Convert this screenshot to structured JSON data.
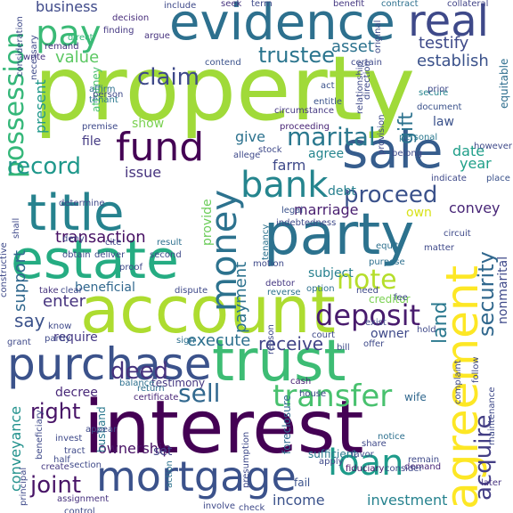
{
  "words": [
    {
      "text": "property",
      "color": "#a0da39"
    },
    {
      "text": "interest",
      "color": "#440154"
    },
    {
      "text": "account",
      "color": "#addc30"
    },
    {
      "text": "evidence",
      "color": "#2d708e"
    },
    {
      "text": "party",
      "color": "#2c728e"
    },
    {
      "text": "estate",
      "color": "#25ac82"
    },
    {
      "text": "purchase",
      "color": "#3b528b"
    },
    {
      "text": "trust",
      "color": "#3dbc74"
    },
    {
      "text": "title",
      "color": "#26828e"
    },
    {
      "text": "sale",
      "color": "#365d8d"
    },
    {
      "text": "mortgage",
      "color": "#3b528b"
    },
    {
      "text": "agreement",
      "color": "#fde725"
    },
    {
      "text": "fund",
      "color": "#440154"
    },
    {
      "text": "money",
      "color": "#2c728e"
    },
    {
      "text": "real",
      "color": "#3e4989"
    },
    {
      "text": "pay",
      "color": "#3aba76"
    },
    {
      "text": "bank",
      "color": "#25858e"
    },
    {
      "text": "loan",
      "color": "#1e9b8a"
    },
    {
      "text": "transfer",
      "color": "#48c16e"
    },
    {
      "text": "deposit",
      "color": "#481b6d"
    },
    {
      "text": "possession",
      "color": "#35b779"
    },
    {
      "text": "claim",
      "color": "#3e4989"
    },
    {
      "text": "trustee",
      "color": "#2b758e"
    },
    {
      "text": "marital",
      "color": "#2a788e"
    },
    {
      "text": "proceed",
      "color": "#3b528b"
    },
    {
      "text": "record",
      "color": "#1f988b"
    },
    {
      "text": "security",
      "color": "#31688e"
    },
    {
      "text": "acquire",
      "color": "#433e85"
    },
    {
      "text": "note",
      "color": "#b5de2b"
    },
    {
      "text": "sell",
      "color": "#31688e"
    },
    {
      "text": "joint",
      "color": "#481467"
    },
    {
      "text": "deed",
      "color": "#46327e"
    },
    {
      "text": "right",
      "color": "#481467"
    },
    {
      "text": "land",
      "color": "#2a788e"
    },
    {
      "text": "receive",
      "color": "#414487"
    },
    {
      "text": "establish",
      "color": "#3b528b"
    },
    {
      "text": "testify",
      "color": "#3e4989"
    },
    {
      "text": "asset",
      "color": "#2c728e"
    },
    {
      "text": "gift",
      "color": "#2c728e"
    },
    {
      "text": "value",
      "color": "#5cc863"
    },
    {
      "text": "business",
      "color": "#3e4989"
    },
    {
      "text": "transaction",
      "color": "#471164"
    },
    {
      "text": "payment",
      "color": "#2c728e"
    },
    {
      "text": "marriage",
      "color": "#481d6f"
    },
    {
      "text": "support",
      "color": "#31688e"
    },
    {
      "text": "enter",
      "color": "#46337e"
    },
    {
      "text": "execute",
      "color": "#2d708e"
    },
    {
      "text": "ownership",
      "color": "#471164"
    },
    {
      "text": "investment",
      "color": "#26828e"
    },
    {
      "text": "conveyance",
      "color": "#21918c"
    },
    {
      "text": "income",
      "color": "#3b528b"
    },
    {
      "text": "say",
      "color": "#3b528b"
    },
    {
      "text": "present",
      "color": "#1f988b"
    },
    {
      "text": "convey",
      "color": "#482677"
    },
    {
      "text": "year",
      "color": "#1fa088"
    },
    {
      "text": "date",
      "color": "#1f9e89"
    },
    {
      "text": "own",
      "color": "#d8e219"
    },
    {
      "text": "give",
      "color": "#2c728e"
    },
    {
      "text": "farm",
      "color": "#3e4989"
    },
    {
      "text": "provide",
      "color": "#6ccd5a"
    },
    {
      "text": "issue",
      "color": "#46337e"
    },
    {
      "text": "file",
      "color": "#443a83"
    },
    {
      "text": "show",
      "color": "#7ad151"
    },
    {
      "text": "agree",
      "color": "#25858e"
    },
    {
      "text": "debt",
      "color": "#27808e"
    },
    {
      "text": "require",
      "color": "#443983"
    },
    {
      "text": "beneficial",
      "color": "#31688e"
    },
    {
      "text": "subject",
      "color": "#27808e"
    },
    {
      "text": "testimony",
      "color": "#453781"
    },
    {
      "text": "nonmarital",
      "color": "#3e4989"
    },
    {
      "text": "decree",
      "color": "#482878"
    },
    {
      "text": "set",
      "color": "#414487"
    },
    {
      "text": "law",
      "color": "#3b528b"
    },
    {
      "text": "owner",
      "color": "#3e4989"
    },
    {
      "text": "attorney",
      "color": "#4ac16d"
    },
    {
      "text": "husband",
      "color": "#2a788e"
    },
    {
      "text": "foreclosure",
      "color": "#2f6c8e"
    },
    {
      "text": "creditor",
      "color": "#7ad151"
    },
    {
      "text": "wife",
      "color": "#31688e"
    },
    {
      "text": "cash",
      "color": "#482173"
    },
    {
      "text": "equitable",
      "color": "#2e6e8e"
    },
    {
      "text": "direct",
      "color": "#35b779"
    },
    {
      "text": "section",
      "color": "#3e4989"
    },
    {
      "text": "fiduciary",
      "color": "#471063"
    },
    {
      "text": "sufficient",
      "color": "#2a788e"
    },
    {
      "text": "demand",
      "color": "#482677"
    },
    {
      "text": "fail",
      "color": "#3b528b"
    },
    {
      "text": "certificate",
      "color": "#482677"
    },
    {
      "text": "entitle",
      "color": "#3b528b"
    },
    {
      "text": "collateral",
      "color": "#414487"
    },
    {
      "text": "benefit",
      "color": "#453882"
    },
    {
      "text": "contract",
      "color": "#2d708e"
    },
    {
      "text": "circumstance",
      "color": "#453882"
    },
    {
      "text": "personal",
      "color": "#2a788e"
    },
    {
      "text": "secure",
      "color": "#25858e"
    },
    {
      "text": "document",
      "color": "#3b528b"
    },
    {
      "text": "proceeding",
      "color": "#482576"
    },
    {
      "text": "place",
      "color": "#3b528b"
    },
    {
      "text": "legal",
      "color": "#3b528b"
    },
    {
      "text": "tenancy",
      "color": "#2c728e"
    },
    {
      "text": "include",
      "color": "#3e4989"
    },
    {
      "text": "seek",
      "color": "#46337e"
    },
    {
      "text": "term",
      "color": "#3e4989"
    },
    {
      "text": "decision",
      "color": "#472c7a"
    },
    {
      "text": "argue",
      "color": "#46327e"
    },
    {
      "text": "contend",
      "color": "#3b528b"
    },
    {
      "text": "certain",
      "color": "#3e4989"
    },
    {
      "text": "finding",
      "color": "#453882"
    },
    {
      "text": "remand",
      "color": "#46327e"
    },
    {
      "text": "write",
      "color": "#46327e"
    },
    {
      "text": "necessary",
      "color": "#3e4989"
    },
    {
      "text": "affirm",
      "color": "#2d708e"
    },
    {
      "text": "tenant",
      "color": "#2a788e"
    },
    {
      "text": "person",
      "color": "#3e4989"
    },
    {
      "text": "act",
      "color": "#3b528b"
    },
    {
      "text": "prior",
      "color": "#3e4989"
    },
    {
      "text": "later",
      "color": "#46337e"
    },
    {
      "text": "determine",
      "color": "#3e4989"
    },
    {
      "text": "deny",
      "color": "#3e4989"
    },
    {
      "text": "obtain",
      "color": "#3e4989"
    },
    {
      "text": "deliver",
      "color": "#3e4989"
    },
    {
      "text": "result",
      "color": "#2d708e"
    },
    {
      "text": "purpose",
      "color": "#2d708e"
    },
    {
      "text": "option",
      "color": "#2d708e"
    },
    {
      "text": "reverse",
      "color": "#2c728e"
    },
    {
      "text": "debtor",
      "color": "#453882"
    },
    {
      "text": "motion",
      "color": "#3e4989"
    },
    {
      "text": "take",
      "color": "#46337e"
    },
    {
      "text": "clear",
      "color": "#3e4989"
    },
    {
      "text": "dispute",
      "color": "#3e4989"
    },
    {
      "text": "sign",
      "color": "#2d708e"
    },
    {
      "text": "grant",
      "color": "#3e4989"
    },
    {
      "text": "return",
      "color": "#2d708e"
    },
    {
      "text": "balance",
      "color": "#2d708e"
    },
    {
      "text": "invest",
      "color": "#3e4989"
    },
    {
      "text": "half",
      "color": "#3e4989"
    },
    {
      "text": "tract",
      "color": "#3e4989"
    },
    {
      "text": "create",
      "color": "#453882"
    },
    {
      "text": "assignment",
      "color": "#46327e"
    },
    {
      "text": "involve",
      "color": "#3e4989"
    },
    {
      "text": "check",
      "color": "#3e4989"
    },
    {
      "text": "consider",
      "color": "#3e4989"
    },
    {
      "text": "share",
      "color": "#3e4989"
    },
    {
      "text": "notice",
      "color": "#2d708e"
    },
    {
      "text": "favor",
      "color": "#3e4989"
    },
    {
      "text": "apply",
      "color": "#3e4989"
    },
    {
      "text": "remain",
      "color": "#3e4989"
    },
    {
      "text": "complaint",
      "color": "#3e4989"
    },
    {
      "text": "follow",
      "color": "#3e4989"
    },
    {
      "text": "maintenance",
      "color": "#3e4989"
    },
    {
      "text": "presumption",
      "color": "#3e4989"
    },
    {
      "text": "action",
      "color": "#2c728e"
    },
    {
      "text": "matter",
      "color": "#3e4989"
    },
    {
      "text": "equity",
      "color": "#2d708e"
    },
    {
      "text": "circuit",
      "color": "#3e4989"
    },
    {
      "text": "indicate",
      "color": "#3e4989"
    },
    {
      "text": "however",
      "color": "#3e4989"
    },
    {
      "text": "belong",
      "color": "#3e4989"
    },
    {
      "text": "provision",
      "color": "#3e4989"
    },
    {
      "text": "original",
      "color": "#3e4989"
    },
    {
      "text": "relationship",
      "color": "#3e4989"
    },
    {
      "text": "exist",
      "color": "#3e4989"
    },
    {
      "text": "need",
      "color": "#3e4989"
    },
    {
      "text": "fee",
      "color": "#3e4989"
    },
    {
      "text": "hold",
      "color": "#3e4989"
    },
    {
      "text": "offer",
      "color": "#3e4989"
    },
    {
      "text": "reason",
      "color": "#3e4989"
    },
    {
      "text": "allege",
      "color": "#3e4989"
    },
    {
      "text": "stock",
      "color": "#3e4989"
    },
    {
      "text": "premise",
      "color": "#3e4989"
    },
    {
      "text": "shall",
      "color": "#3e4989"
    },
    {
      "text": "know",
      "color": "#3e4989"
    },
    {
      "text": "partly",
      "color": "#3e4989"
    },
    {
      "text": "indebtedness",
      "color": "#3e4989"
    },
    {
      "text": "beneficiary",
      "color": "#3e4989"
    },
    {
      "text": "principal",
      "color": "#3e4989"
    },
    {
      "text": "constructive",
      "color": "#3e4989"
    },
    {
      "text": "consideration",
      "color": "#3e4989"
    },
    {
      "text": "control",
      "color": "#3e4989"
    },
    {
      "text": "appear",
      "color": "#3e4989"
    },
    {
      "text": "direction",
      "color": "#3e4989"
    },
    {
      "text": "cite",
      "color": "#3e4989"
    },
    {
      "text": "proof",
      "color": "#3e4989"
    },
    {
      "text": "second",
      "color": "#3e4989"
    },
    {
      "text": "house",
      "color": "#3e4989"
    },
    {
      "text": "court",
      "color": "#3e4989"
    },
    {
      "text": "bill",
      "color": "#3e4989"
    }
  ]
}
